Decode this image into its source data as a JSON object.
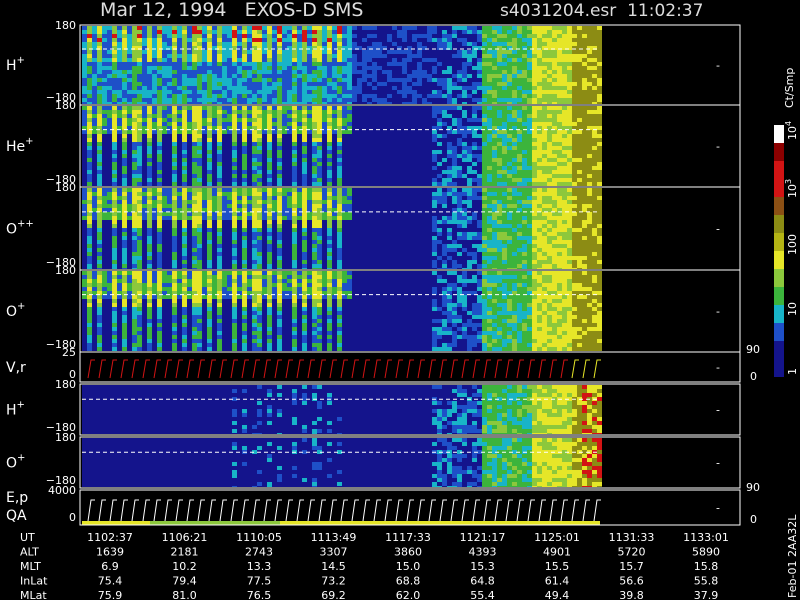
{
  "header": {
    "title": "Mar 12, 1994   EXOS-D SMS",
    "file": "s4031204.esr  11:02:37"
  },
  "panels": [
    {
      "label": "H",
      "sup": "+",
      "ticks": [
        "180",
        "−180"
      ]
    },
    {
      "label": "He",
      "sup": "+",
      "ticks": [
        "180",
        "−180"
      ]
    },
    {
      "label": "O",
      "sup": "++",
      "ticks": [
        "180",
        "−180"
      ]
    },
    {
      "label": "O",
      "sup": "+",
      "ticks": [
        "180",
        "−180"
      ]
    },
    {
      "label": "V,r",
      "ticks": [
        "25",
        "0"
      ],
      "right_ticks": [
        "90",
        "0"
      ]
    },
    {
      "label": "H",
      "sup": "+",
      "ticks": [
        "180",
        "−180"
      ]
    },
    {
      "label": "O",
      "sup": "+",
      "ticks": [
        "180",
        "−180"
      ]
    },
    {
      "label": "E,p",
      "label2": "QA",
      "ticks": [
        "4000",
        "0"
      ],
      "right_ticks": [
        "90",
        "0"
      ]
    }
  ],
  "colorbar": {
    "unit": "Ct/Smp",
    "ticks": [
      {
        "base": "10",
        "exp": "4"
      },
      {
        "base": "10",
        "exp": "3"
      },
      {
        "base": "100"
      },
      {
        "base": "10"
      },
      {
        "base": "1"
      }
    ]
  },
  "table": {
    "rows": [
      {
        "label": "UT",
        "values": [
          "1102:37",
          "1106:21",
          "1110:05",
          "1113:49",
          "1117:33",
          "1121:17",
          "1125:01",
          "1131:33",
          "1133:01"
        ]
      },
      {
        "label": "ALT",
        "values": [
          "1639",
          "2181",
          "2743",
          "3307",
          "3860",
          "4393",
          "4901",
          "5720",
          "5890"
        ]
      },
      {
        "label": "MLT",
        "values": [
          "6.9",
          "10.2",
          "13.3",
          "14.5",
          "15.0",
          "15.3",
          "15.5",
          "15.7",
          "15.8"
        ]
      },
      {
        "label": "InLat",
        "values": [
          "75.4",
          "79.4",
          "77.5",
          "73.2",
          "68.8",
          "64.8",
          "61.4",
          "56.6",
          "55.8"
        ]
      },
      {
        "label": "MLat",
        "values": [
          "75.9",
          "81.0",
          "76.5",
          "69.2",
          "62.0",
          "55.4",
          "49.4",
          "39.8",
          "37.9"
        ]
      }
    ]
  },
  "footer": "Feb-01 2AA32L"
}
